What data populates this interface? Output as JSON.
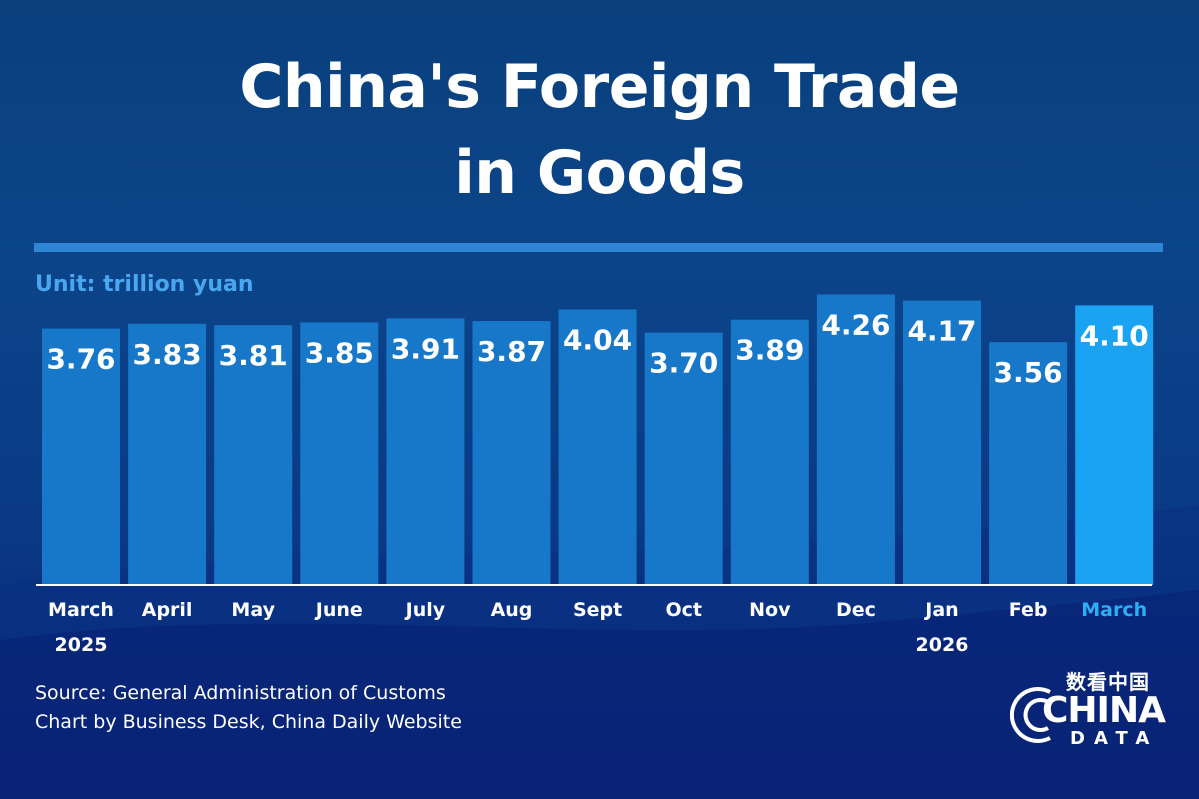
{
  "title_line1": "China's Foreign Trade",
  "title_line2": "in Goods",
  "unit_label": "Unit: trillion yuan",
  "source_line1": "Source: General Administration of Customs",
  "source_line2": "Chart by Business Desk, China Daily Website",
  "logo": {
    "chinese": "数看中国",
    "word": "CHINA",
    "sub": "DATA"
  },
  "colors": {
    "bar": "#1778c9",
    "highlight_bar": "#1aa3f2",
    "highlight_label": "#2ab0f5",
    "rule": "#2f86d6",
    "unit": "#4aa7ef"
  },
  "chart_data": {
    "type": "bar",
    "title": "China's Foreign Trade in Goods",
    "ylabel": "Unit: trillion yuan",
    "categories": [
      "March",
      "April",
      "May",
      "June",
      "July",
      "Aug",
      "Sept",
      "Oct",
      "Nov",
      "Dec",
      "Jan",
      "Feb",
      "March"
    ],
    "sublabels": [
      "2025",
      "",
      "",
      "",
      "",
      "",
      "",
      "",
      "",
      "",
      "2026",
      "",
      ""
    ],
    "values": [
      3.76,
      3.83,
      3.81,
      3.85,
      3.91,
      3.87,
      4.04,
      3.7,
      3.89,
      4.26,
      4.17,
      3.56,
      4.1
    ],
    "value_labels": [
      "3.76",
      "3.83",
      "3.81",
      "3.85",
      "3.91",
      "3.87",
      "4.04",
      "3.70",
      "3.89",
      "4.26",
      "4.17",
      "3.56",
      "4.10"
    ],
    "highlight_index": 12,
    "grid": false,
    "legend": "none"
  }
}
